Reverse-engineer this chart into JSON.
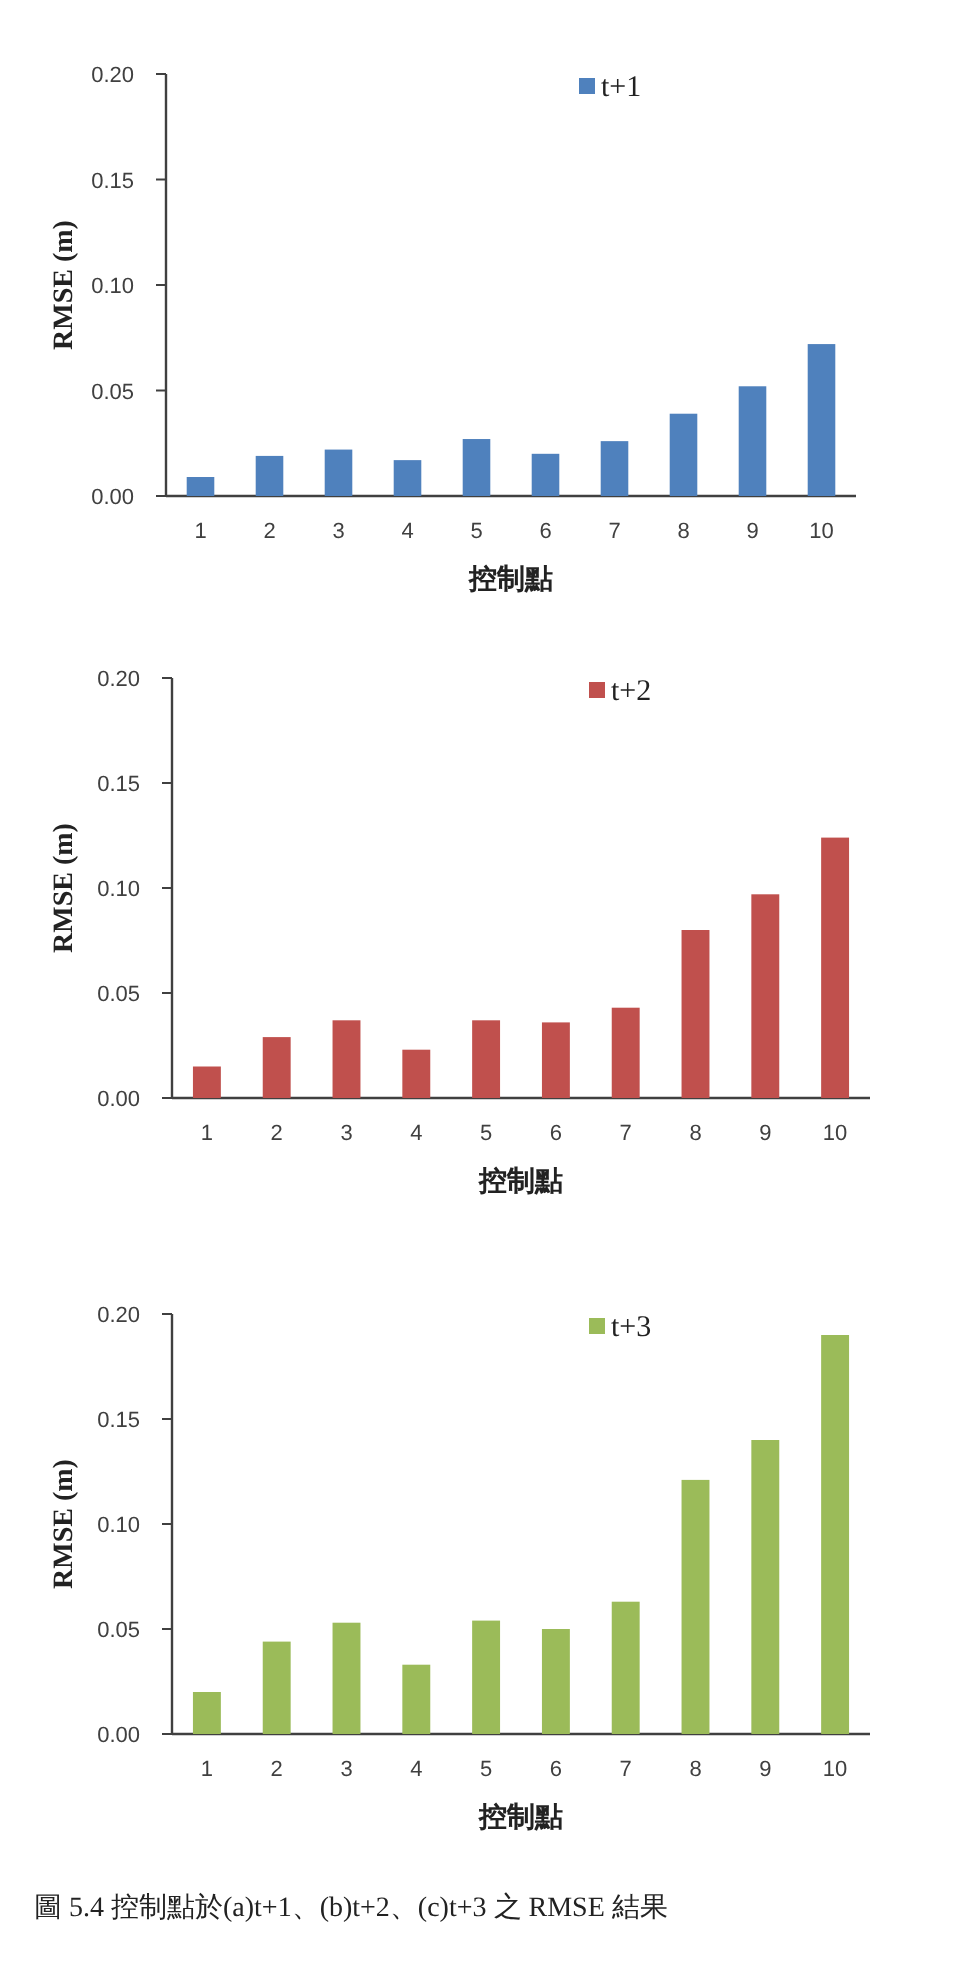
{
  "chart_data": [
    {
      "type": "bar",
      "categories": [
        "1",
        "2",
        "3",
        "4",
        "5",
        "6",
        "7",
        "8",
        "9",
        "10"
      ],
      "series": [
        {
          "name": "t+1",
          "color": "#4f81bd",
          "values": [
            0.009,
            0.019,
            0.022,
            0.017,
            0.027,
            0.02,
            0.026,
            0.039,
            0.052,
            0.072
          ]
        }
      ],
      "ylim": [
        0,
        0.2
      ],
      "yticks": [
        {
          "value": 0,
          "label": "0.00"
        },
        {
          "value": 0.05,
          "label": "0.05"
        },
        {
          "value": 0.1,
          "label": "0.10"
        },
        {
          "value": 0.15,
          "label": "0.15"
        },
        {
          "value": 0.2,
          "label": "0.20"
        }
      ],
      "xlabel": "控制點",
      "ylabel": "RMSE (m)",
      "legend": "top"
    },
    {
      "type": "bar",
      "categories": [
        "1",
        "2",
        "3",
        "4",
        "5",
        "6",
        "7",
        "8",
        "9",
        "10"
      ],
      "series": [
        {
          "name": "t+2",
          "color": "#c0504d",
          "values": [
            0.015,
            0.029,
            0.037,
            0.023,
            0.037,
            0.036,
            0.043,
            0.08,
            0.097,
            0.124
          ]
        }
      ],
      "ylim": [
        0,
        0.2
      ],
      "yticks": [
        {
          "value": 0,
          "label": "0.00"
        },
        {
          "value": 0.05,
          "label": "0.05"
        },
        {
          "value": 0.1,
          "label": "0.10"
        },
        {
          "value": 0.15,
          "label": "0.15"
        },
        {
          "value": 0.2,
          "label": "0.20"
        }
      ],
      "xlabel": "控制點",
      "ylabel": "RMSE (m)",
      "legend": "top"
    },
    {
      "type": "bar",
      "categories": [
        "1",
        "2",
        "3",
        "4",
        "5",
        "6",
        "7",
        "8",
        "9",
        "10"
      ],
      "series": [
        {
          "name": "t+3",
          "color": "#9bbb59",
          "values": [
            0.02,
            0.044,
            0.053,
            0.033,
            0.054,
            0.05,
            0.063,
            0.121,
            0.14,
            0.19
          ]
        }
      ],
      "ylim": [
        0,
        0.2
      ],
      "yticks": [
        {
          "value": 0,
          "label": "0.00"
        },
        {
          "value": 0.05,
          "label": "0.05"
        },
        {
          "value": 0.1,
          "label": "0.10"
        },
        {
          "value": 0.15,
          "label": "0.15"
        },
        {
          "value": 0.2,
          "label": "0.20"
        }
      ],
      "xlabel": "控制點",
      "ylabel": "RMSE (m)",
      "legend": "top",
      "annotations": [
        "圖 5.4 控制點於(a)t+1、(b)t+2、(c)t+3 之 RMSE 結果"
      ]
    }
  ]
}
